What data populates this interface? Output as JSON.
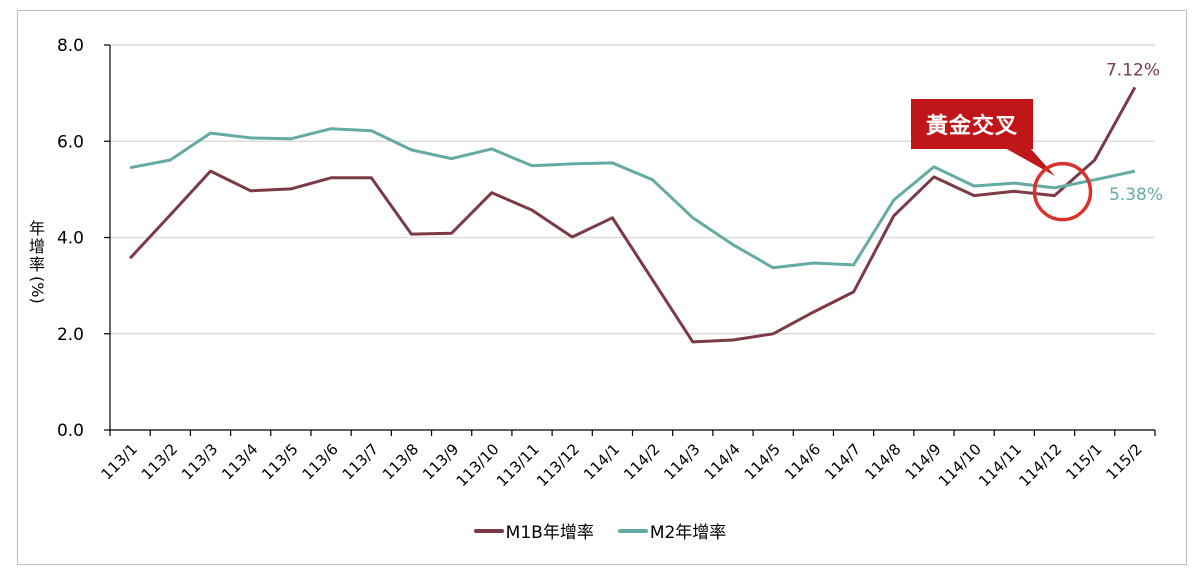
{
  "chart_data": {
    "type": "line",
    "title": "",
    "xlabel": "",
    "ylabel": "年增率(%)",
    "ylim": [
      0,
      8
    ],
    "yticks": [
      "0.0",
      "2.0",
      "4.0",
      "6.0",
      "8.0"
    ],
    "grid": true,
    "legend_position": "bottom",
    "categories": [
      "113/1",
      "113/2",
      "113/3",
      "113/4",
      "113/5",
      "113/6",
      "113/7",
      "113/8",
      "113/9",
      "113/10",
      "113/11",
      "113/12",
      "114/1",
      "114/2",
      "114/3",
      "114/4",
      "114/5",
      "114/6",
      "114/7",
      "114/8",
      "114/9",
      "114/10",
      "114/11",
      "114/12",
      "115/1",
      "115/2"
    ],
    "series": [
      {
        "name": "M1B年增率",
        "color": "#7b3a45",
        "values": [
          3.57,
          4.47,
          5.38,
          4.97,
          5.01,
          5.24,
          5.24,
          4.07,
          4.09,
          4.93,
          4.57,
          4.01,
          4.41,
          3.12,
          1.83,
          1.87,
          2.0,
          2.45,
          2.87,
          4.45,
          5.26,
          4.87,
          4.96,
          4.87,
          5.61,
          7.12
        ]
      },
      {
        "name": "M2年增率",
        "color": "#63aba3",
        "values": [
          5.45,
          5.61,
          6.17,
          6.07,
          6.05,
          6.26,
          6.22,
          5.82,
          5.64,
          5.84,
          5.49,
          5.53,
          5.55,
          5.2,
          4.41,
          3.85,
          3.37,
          3.47,
          3.43,
          4.78,
          5.47,
          5.07,
          5.13,
          5.03,
          5.2,
          5.38
        ]
      }
    ],
    "annotations": [
      {
        "text": "7.12%",
        "series": "M1B年增率",
        "at": "115/2",
        "color": "#7b3a45"
      },
      {
        "text": "5.38%",
        "series": "M2年增率",
        "at": "115/2",
        "color": "#63aba3"
      },
      {
        "text": "黃金交叉",
        "type": "callout",
        "at": "114/12",
        "bg": "#c0161a",
        "circle_color": "#d9322b"
      }
    ]
  },
  "ui": {
    "ylabel_chars": [
      "年",
      "增",
      "率",
      "(%)"
    ],
    "callout_text": "黃金交叉",
    "legend": [
      {
        "label": "M1B年增率",
        "color": "#7b3a45"
      },
      {
        "label": "M2年增率",
        "color": "#63aba3"
      }
    ]
  }
}
